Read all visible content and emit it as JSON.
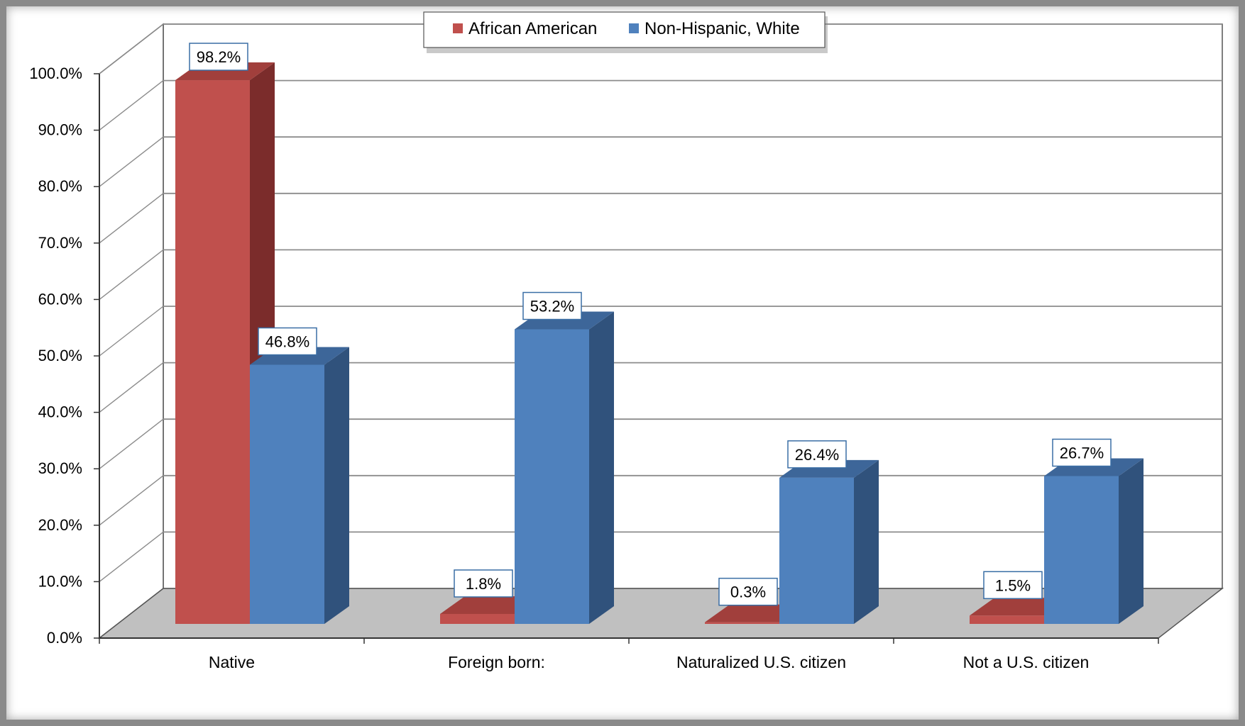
{
  "chart_data": {
    "type": "bar",
    "title": "",
    "xlabel": "",
    "ylabel": "",
    "ylim": [
      0,
      100
    ],
    "ytick_labels": [
      "0.0%",
      "10.0%",
      "20.0%",
      "30.0%",
      "40.0%",
      "50.0%",
      "60.0%",
      "70.0%",
      "80.0%",
      "90.0%",
      "100.0%"
    ],
    "categories": [
      "Native",
      "Foreign born:",
      "Naturalized U.S. citizen",
      "Not a U.S. citizen"
    ],
    "series": [
      {
        "name": "African American",
        "values": [
          98.2,
          1.8,
          0.3,
          1.5
        ],
        "labels": [
          "98.2%",
          "1.8%",
          "0.3%",
          "1.5%"
        ],
        "color": "#c0504d",
        "side_color": "#7b2c2b",
        "top_color": "#a13f3c"
      },
      {
        "name": "Non-Hispanic, White",
        "values": [
          46.8,
          53.2,
          26.4,
          26.7
        ],
        "labels": [
          "46.8%",
          "53.2%",
          "26.4%",
          "26.7%"
        ],
        "color": "#4f81bd",
        "side_color": "#30527c",
        "top_color": "#3d6699"
      }
    ],
    "legend_position": "top",
    "grid": true,
    "three_d": true
  }
}
